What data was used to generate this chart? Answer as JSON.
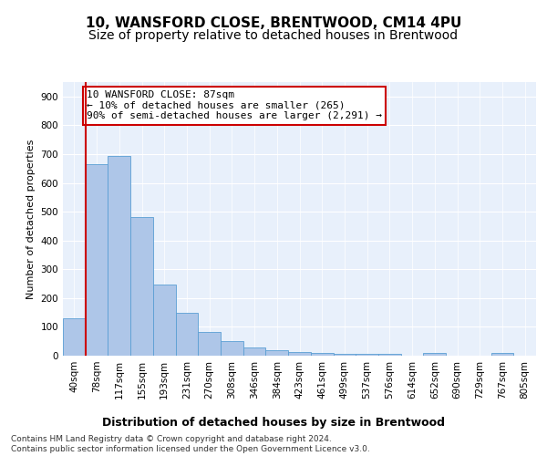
{
  "title1": "10, WANSFORD CLOSE, BRENTWOOD, CM14 4PU",
  "title2": "Size of property relative to detached houses in Brentwood",
  "xlabel": "Distribution of detached houses by size in Brentwood",
  "ylabel": "Number of detached properties",
  "categories": [
    "40sqm",
    "78sqm",
    "117sqm",
    "155sqm",
    "193sqm",
    "231sqm",
    "270sqm",
    "308sqm",
    "346sqm",
    "384sqm",
    "423sqm",
    "461sqm",
    "499sqm",
    "537sqm",
    "576sqm",
    "614sqm",
    "652sqm",
    "690sqm",
    "729sqm",
    "767sqm",
    "805sqm"
  ],
  "values": [
    130,
    665,
    695,
    480,
    248,
    148,
    83,
    50,
    27,
    20,
    13,
    10,
    5,
    5,
    5,
    0,
    10,
    0,
    0,
    10,
    0
  ],
  "bar_color": "#aec6e8",
  "bar_edge_color": "#5a9fd4",
  "vline_color": "#cc0000",
  "vline_x_index": 1,
  "annotation_text": "10 WANSFORD CLOSE: 87sqm\n← 10% of detached houses are smaller (265)\n90% of semi-detached houses are larger (2,291) →",
  "annotation_box_facecolor": "#ffffff",
  "annotation_box_edgecolor": "#cc0000",
  "ylim": [
    0,
    950
  ],
  "yticks": [
    0,
    100,
    200,
    300,
    400,
    500,
    600,
    700,
    800,
    900
  ],
  "bg_color": "#e8f0fb",
  "fig_bg_color": "#ffffff",
  "title1_fontsize": 11,
  "title2_fontsize": 10,
  "xlabel_fontsize": 9,
  "ylabel_fontsize": 8,
  "tick_fontsize": 7.5,
  "annotation_fontsize": 8,
  "footnote_fontsize": 6.5,
  "footnote": "Contains HM Land Registry data © Crown copyright and database right 2024.\nContains public sector information licensed under the Open Government Licence v3.0."
}
